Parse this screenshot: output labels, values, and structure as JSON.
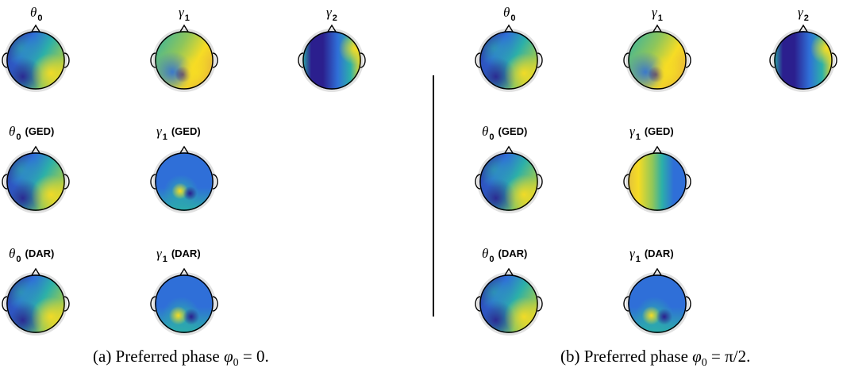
{
  "panels": [
    {
      "caption_prefix": "(a) Preferred phase ",
      "caption_math": "φ",
      "caption_sub": "0",
      "caption_suffix": " = 0.",
      "rows": [
        [
          {
            "base": "θ",
            "sub": "0",
            "method": "",
            "pattern": "theta"
          },
          {
            "base": "γ",
            "sub": "1",
            "method": "",
            "pattern": "gamma1"
          },
          {
            "base": "γ",
            "sub": "2",
            "method": "",
            "pattern": "gamma2"
          }
        ],
        [
          {
            "base": "θ",
            "sub": "0",
            "method": "(GED)",
            "pattern": "theta"
          },
          {
            "base": "γ",
            "sub": "1",
            "method": "(GED)",
            "pattern": "gamma1ged"
          }
        ],
        [
          {
            "base": "θ",
            "sub": "0",
            "method": "(DAR)",
            "pattern": "theta"
          },
          {
            "base": "γ",
            "sub": "1",
            "method": "(DAR)",
            "pattern": "gamma1dar"
          }
        ]
      ]
    },
    {
      "caption_prefix": "(b) Preferred phase ",
      "caption_math": "φ",
      "caption_sub": "0",
      "caption_suffix": " = π/2.",
      "rows": [
        [
          {
            "base": "θ",
            "sub": "0",
            "method": "",
            "pattern": "theta"
          },
          {
            "base": "γ",
            "sub": "1",
            "method": "",
            "pattern": "gamma1"
          },
          {
            "base": "γ",
            "sub": "2",
            "method": "",
            "pattern": "gamma2"
          }
        ],
        [
          {
            "base": "θ",
            "sub": "0",
            "method": "(GED)",
            "pattern": "theta"
          },
          {
            "base": "γ",
            "sub": "1",
            "method": "(GED)",
            "pattern": "gamma1vert"
          }
        ],
        [
          {
            "base": "θ",
            "sub": "0",
            "method": "(DAR)",
            "pattern": "theta"
          },
          {
            "base": "γ",
            "sub": "1",
            "method": "(DAR)",
            "pattern": "gamma1dar"
          }
        ]
      ]
    }
  ],
  "colors": {
    "dark": "#2b1f8e",
    "blue": "#2f6fd8",
    "teal": "#2cb0a8",
    "green": "#8fc65a",
    "yellow": "#f6dc24",
    "rim": "#d4d4d4",
    "outline": "#000000"
  }
}
